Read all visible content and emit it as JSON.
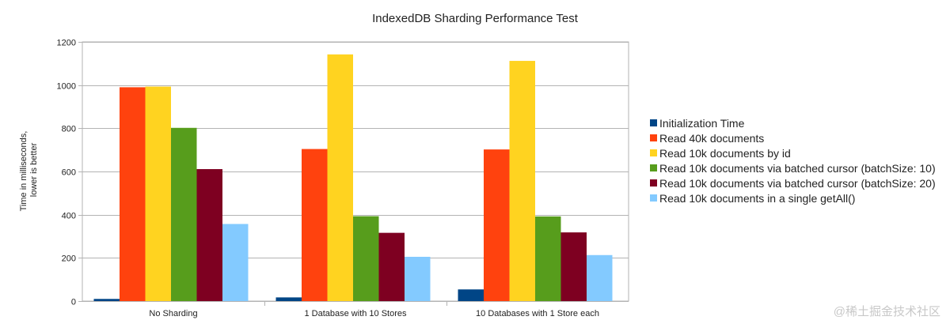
{
  "chart_data": {
    "type": "bar",
    "title": "IndexedDB Sharding Performance Test",
    "xlabel": "",
    "ylabel_lines": [
      "Time in milliseconds,",
      "lower is better"
    ],
    "ylim": [
      0,
      1200
    ],
    "yticks": [
      0,
      200,
      400,
      600,
      800,
      1000,
      1200
    ],
    "grid": true,
    "legend_position": "right",
    "categories": [
      "No Sharding",
      "1 Database with 10 Stores",
      "10 Databases with 1 Store each"
    ],
    "series": [
      {
        "name": "Initialization Time",
        "color": "#004586",
        "values": [
          10,
          17,
          54
        ]
      },
      {
        "name": "Read 40k documents",
        "color": "#ff420e",
        "values": [
          990,
          704,
          702
        ]
      },
      {
        "name": "Read 10k documents by id",
        "color": "#ffd320",
        "values": [
          993,
          1142,
          1112
        ]
      },
      {
        "name": "Read 10k documents via batched cursor (batchSize: 10)",
        "color": "#579d1c",
        "values": [
          802,
          393,
          392
        ]
      },
      {
        "name": "Read 10k documents via batched cursor (batchSize: 20)",
        "color": "#7e0021",
        "values": [
          611,
          316,
          318
        ]
      },
      {
        "name": "Read 10k documents in a single getAll()",
        "color": "#83caff",
        "values": [
          357,
          205,
          213
        ]
      }
    ]
  },
  "watermark": "@稀土掘金技术社区"
}
